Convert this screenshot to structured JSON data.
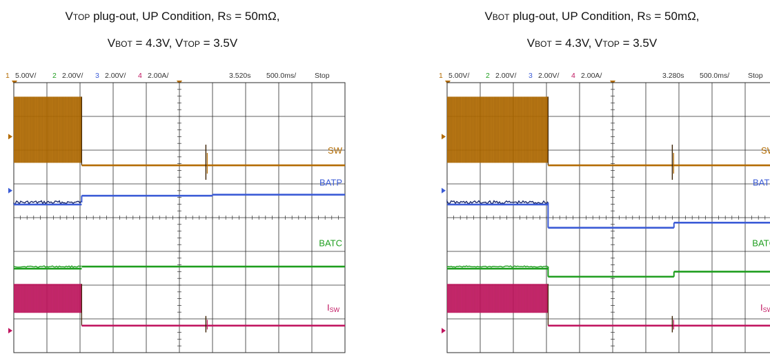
{
  "left_title_line1": {
    "pre": "V",
    "sub": "TOP",
    "post": " plug-out, UP Condition, R",
    "sub2": "S",
    "post2": " = 50mΩ,"
  },
  "left_title_line2": {
    "a": "V",
    "a_sub": "BOT",
    "b": " = 4.3V, V",
    "b_sub": "TOP",
    "c": " = 3.5V"
  },
  "right_title_line1": {
    "pre": "V",
    "sub": "BOT",
    "post": " plug-out, UP Condition, R",
    "sub2": "S",
    "post2": " = 50mΩ,"
  },
  "right_title_line2": {
    "a": "V",
    "a_sub": "BOT",
    "b": " = 4.3V, V",
    "b_sub": "TOP",
    "c": " = 3.5V"
  },
  "colors": {
    "sw": "#b36b00",
    "batp": "#3b5bd6",
    "batc": "#1f9e1f",
    "isw": "#c0145f",
    "grid": "#2a2a2a"
  },
  "chart_data": [
    {
      "type": "line",
      "title": "VTOP plug-out, UP Condition, RS = 50mΩ, VBOT = 4.3V, VTOP = 3.5V",
      "scope_header": {
        "ch1": "5.00V/",
        "ch2": "2.00V/",
        "ch3": "2.00V/",
        "ch4": "2.00A/",
        "time_position": "3.520s",
        "timebase": "500.0ms/",
        "state": "Stop"
      },
      "x_divisions": 10,
      "y_divisions": 8,
      "event_division": 2.05,
      "series": [
        {
          "name": "SW",
          "ch": "1",
          "level_before_div": 1.6,
          "level_after_div": 2.45,
          "switching_before": true,
          "spike_div": 5.8
        },
        {
          "name": "BATP",
          "ch": "3",
          "level_before_div": 3.55,
          "level_after_div": 3.35,
          "step_div": 6.0,
          "level_late_div": 3.32
        },
        {
          "name": "BATC",
          "ch": "2",
          "level_before_div": 5.45,
          "level_after_div": 5.45
        },
        {
          "name": "ISW",
          "ch": "4",
          "level_before_div": 6.25,
          "level_after_div": 7.2,
          "switching_before": true,
          "spike_div": 5.8
        }
      ]
    },
    {
      "type": "line",
      "title": "VBOT plug-out, UP Condition, RS = 50mΩ, VBOT = 4.3V, VTOP = 3.5V",
      "scope_header": {
        "ch1": "5.00V/",
        "ch2": "2.00V/",
        "ch3": "2.00V/",
        "ch4": "2.00A/",
        "time_position": "3.280s",
        "timebase": "500.0ms/",
        "state": "Stop"
      },
      "x_divisions": 10,
      "y_divisions": 8,
      "event_division": 3.05,
      "series": [
        {
          "name": "SW",
          "ch": "1",
          "level_before_div": 1.6,
          "level_after_div": 2.45,
          "switching_before": true,
          "spike_div": 6.8
        },
        {
          "name": "BATP",
          "ch": "3",
          "level_before_div": 3.55,
          "level_after_div": 4.3,
          "step_div": 6.85,
          "level_late_div": 4.15
        },
        {
          "name": "BATC",
          "ch": "2",
          "level_before_div": 5.45,
          "level_after_div": 5.75,
          "step_div": 6.85,
          "level_late_div": 5.6
        },
        {
          "name": "ISW",
          "ch": "4",
          "level_before_div": 6.25,
          "level_after_div": 7.2,
          "switching_before": true,
          "spike_div": 6.8
        }
      ]
    }
  ]
}
